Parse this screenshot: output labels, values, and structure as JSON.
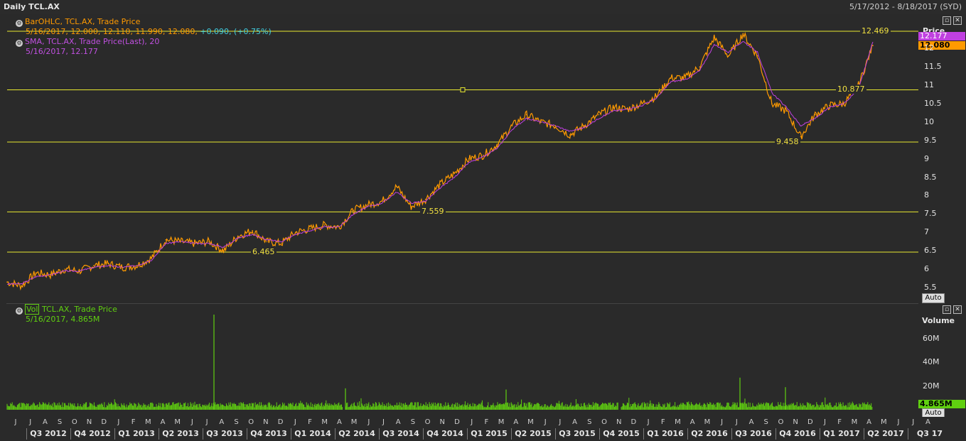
{
  "window": {
    "title": "Daily TCL.AX",
    "date_range": "5/17/2012 - 8/18/2017 (SYD)"
  },
  "price_legend": {
    "ohlc_title": "BarOHLC, TCL.AX, Trade Price",
    "ohlc_values": "5/16/2017, 12.000, 12.110, 11.990, 12.080,",
    "ohlc_change": "+0.090, (+0.75%)",
    "sma_title": "SMA, TCL.AX, Trade Price(Last), 20",
    "sma_values": "5/16/2017, 12.177"
  },
  "volume_legend": {
    "badge": "Vol",
    "title": "TCL.AX, Trade Price",
    "values": "5/16/2017, 4.865M"
  },
  "price_axis": {
    "title": "Price",
    "ticks": [
      "12",
      "11.5",
      "11",
      "10.5",
      "10",
      "9.5",
      "9",
      "8.5",
      "8",
      "7.5",
      "7",
      "6.5",
      "6",
      "5.5"
    ],
    "sma_tag": "12.177",
    "last_tag": "12.080",
    "auto_label": "Auto"
  },
  "volume_axis": {
    "title": "Volume",
    "ticks": [
      "60M",
      "40M",
      "20M"
    ],
    "last_tag": "4.865M",
    "auto_label": "Auto"
  },
  "horizontal_lines": [
    {
      "value": 12.469,
      "label": "12.469"
    },
    {
      "value": 10.877,
      "label": "10.877"
    },
    {
      "value": 9.458,
      "label": "9.458"
    },
    {
      "value": 7.559,
      "label": "7.559"
    },
    {
      "value": 6.465,
      "label": "6.465"
    }
  ],
  "x_axis": {
    "months": [
      "J",
      "J",
      "A",
      "S",
      "O",
      "N",
      "D",
      "J",
      "F",
      "M",
      "A",
      "M",
      "J",
      "J",
      "A",
      "S",
      "O",
      "N",
      "D",
      "J",
      "F",
      "M",
      "A",
      "M",
      "J",
      "J",
      "A",
      "S",
      "O",
      "N",
      "D",
      "J",
      "F",
      "M",
      "A",
      "M",
      "J",
      "J",
      "A",
      "S",
      "O",
      "N",
      "D",
      "J",
      "F",
      "M",
      "A",
      "M",
      "J",
      "J",
      "A",
      "S",
      "O",
      "N",
      "D",
      "J",
      "F",
      "M",
      "A",
      "M",
      "J",
      "J",
      "A"
    ],
    "quarters": [
      "Q3 2012",
      "Q4 2012",
      "Q1 2013",
      "Q2 2013",
      "Q3 2013",
      "Q4 2013",
      "Q1 2014",
      "Q2 2014",
      "Q3 2014",
      "Q4 2014",
      "Q1 2015",
      "Q2 2015",
      "Q3 2015",
      "Q4 2015",
      "Q1 2016",
      "Q2 2016",
      "Q3 2016",
      "Q4 2016",
      "Q1 2017",
      "Q2 2017",
      "Q3 17"
    ]
  },
  "colors": {
    "price": "#ff9a00",
    "sma": "#c040e0",
    "hline": "#e8e830",
    "volume": "#60d010",
    "background": "#2a2a2a"
  },
  "chart_data": [
    {
      "type": "line",
      "title": "Daily TCL.AX",
      "ylabel": "Price",
      "ylim": [
        5.3,
        12.8
      ],
      "x": [
        "2012-05",
        "2012-06",
        "2012-07",
        "2012-08",
        "2012-09",
        "2012-10",
        "2012-11",
        "2012-12",
        "2013-01",
        "2013-02",
        "2013-03",
        "2013-04",
        "2013-05",
        "2013-06",
        "2013-07",
        "2013-08",
        "2013-09",
        "2013-10",
        "2013-11",
        "2013-12",
        "2014-01",
        "2014-02",
        "2014-03",
        "2014-04",
        "2014-05",
        "2014-06",
        "2014-07",
        "2014-08",
        "2014-09",
        "2014-10",
        "2014-11",
        "2014-12",
        "2015-01",
        "2015-02",
        "2015-03",
        "2015-04",
        "2015-05",
        "2015-06",
        "2015-07",
        "2015-08",
        "2015-09",
        "2015-10",
        "2015-11",
        "2015-12",
        "2016-01",
        "2016-02",
        "2016-03",
        "2016-04",
        "2016-05",
        "2016-06",
        "2016-07",
        "2016-08",
        "2016-09",
        "2016-10",
        "2016-11",
        "2016-12",
        "2017-01",
        "2017-02",
        "2017-03",
        "2017-04",
        "2017-05"
      ],
      "series": [
        {
          "name": "BarOHLC, TCL.AX, Trade Price",
          "values": [
            5.65,
            5.55,
            5.9,
            5.85,
            6.0,
            5.95,
            6.1,
            6.15,
            6.05,
            6.1,
            6.3,
            6.8,
            6.75,
            6.7,
            6.75,
            6.5,
            6.9,
            7.05,
            6.75,
            6.7,
            7.0,
            7.1,
            7.2,
            7.15,
            7.6,
            7.75,
            7.85,
            8.25,
            7.7,
            7.9,
            8.3,
            8.6,
            9.0,
            9.1,
            9.4,
            9.9,
            10.2,
            10.0,
            9.9,
            9.65,
            9.9,
            10.2,
            10.4,
            10.35,
            10.5,
            10.7,
            11.2,
            11.2,
            11.5,
            12.3,
            11.8,
            12.4,
            11.8,
            10.5,
            10.3,
            9.6,
            10.2,
            10.45,
            10.5,
            11.0,
            12.08
          ]
        },
        {
          "name": "SMA, TCL.AX, Trade Price(Last), 20",
          "values": [
            5.6,
            5.6,
            5.8,
            5.85,
            5.95,
            5.95,
            6.05,
            6.1,
            6.05,
            6.1,
            6.25,
            6.7,
            6.75,
            6.7,
            6.7,
            6.6,
            6.85,
            6.95,
            6.8,
            6.75,
            6.95,
            7.05,
            7.15,
            7.15,
            7.5,
            7.7,
            7.8,
            8.1,
            7.8,
            7.85,
            8.2,
            8.5,
            8.9,
            9.05,
            9.3,
            9.8,
            10.1,
            10.0,
            9.9,
            9.75,
            9.85,
            10.1,
            10.3,
            10.35,
            10.45,
            10.65,
            11.1,
            11.15,
            11.4,
            12.1,
            11.9,
            12.2,
            11.9,
            10.8,
            10.4,
            9.9,
            10.1,
            10.4,
            10.5,
            10.9,
            12.177
          ]
        }
      ]
    },
    {
      "type": "bar",
      "title": "TCL.AX, Trade Price",
      "ylabel": "Volume",
      "ylim": [
        0,
        80000000
      ],
      "x": [
        "2013-08-30",
        "2014-05-15",
        "2015-06-30",
        "2016-08-10",
        "2016-11-10"
      ],
      "series": [
        {
          "name": "Vol",
          "values": [
            80000000,
            18000000,
            17000000,
            27000000,
            19000000
          ]
        }
      ],
      "note_typical_daily_volume": 5000000
    }
  ]
}
